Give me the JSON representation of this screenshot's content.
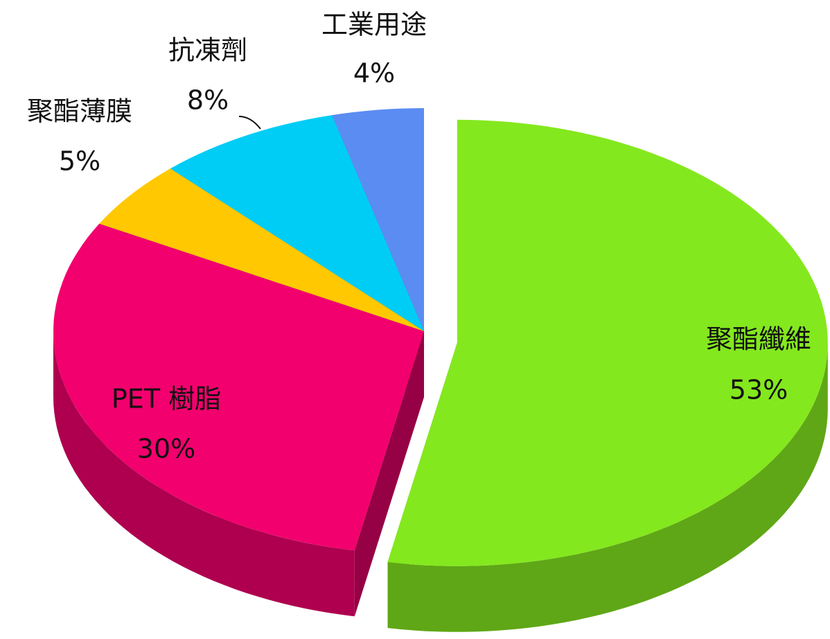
{
  "chart_data": {
    "type": "pie3d",
    "categories": [
      "聚酯纖維",
      "PET 樹脂",
      "聚酯薄膜",
      "抗凍劑",
      "工業用途"
    ],
    "values": [
      53,
      30,
      5,
      8,
      4
    ],
    "value_labels": [
      "53%",
      "30%",
      "5%",
      "8%",
      "4%"
    ],
    "colors": [
      "#84e81e",
      "#f2006e",
      "#ffc800",
      "#00cdf5",
      "#5b8cf2"
    ],
    "exploded": [
      "聚酯纖維"
    ]
  }
}
